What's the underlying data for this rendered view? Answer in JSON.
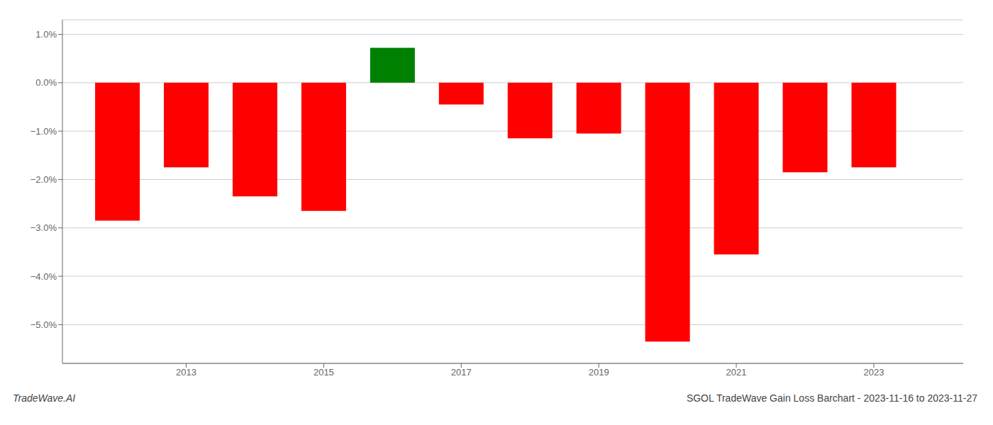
{
  "chart_data": {
    "type": "bar",
    "title": "SGOL TradeWave Gain Loss Barchart - 2023-11-16 to 2023-11-27",
    "annotations": [
      "TradeWave.AI"
    ],
    "x": [
      2012,
      2013,
      2014,
      2015,
      2016,
      2017,
      2018,
      2019,
      2020,
      2021,
      2022,
      2023
    ],
    "values": [
      -2.85,
      -1.75,
      -2.35,
      -2.65,
      0.72,
      -0.45,
      -1.15,
      -1.05,
      -5.35,
      -3.55,
      -1.85,
      -1.75
    ],
    "colors": [
      "#ff0000",
      "#ff0000",
      "#ff0000",
      "#ff0000",
      "#008000",
      "#ff0000",
      "#ff0000",
      "#ff0000",
      "#ff0000",
      "#ff0000",
      "#ff0000",
      "#ff0000"
    ],
    "xlim": [
      2011.2,
      2024.3
    ],
    "xticks": [
      2013,
      2015,
      2017,
      2019,
      2021,
      2023
    ],
    "ylim": [
      -5.8,
      1.3
    ],
    "yticks": [
      {
        "value": 1.0,
        "label": "1.0%"
      },
      {
        "value": 0.0,
        "label": "0.0%"
      },
      {
        "value": -1.0,
        "label": "−1.0%"
      },
      {
        "value": -2.0,
        "label": "−2.0%"
      },
      {
        "value": -3.0,
        "label": "−3.0%"
      },
      {
        "value": -4.0,
        "label": "−4.0%"
      },
      {
        "value": -5.0,
        "label": "−5.0%"
      }
    ],
    "grid": true
  }
}
